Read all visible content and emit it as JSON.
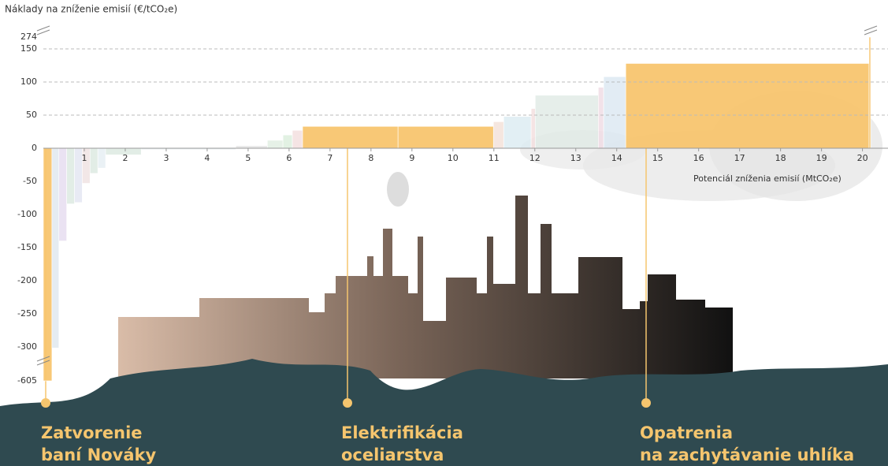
{
  "chart_data": {
    "type": "macc",
    "title": "Náklady na zníženie emisií (€/tCO₂e)",
    "x_label": "Potenciál zníženia emisií (MtCO₂e)",
    "xlim": [
      0,
      20.2
    ],
    "xticks": [
      1,
      2,
      3,
      4,
      5,
      6,
      7,
      8,
      9,
      10,
      11,
      12,
      13,
      14,
      15,
      16,
      17,
      18,
      19,
      20
    ],
    "ylim": [
      -605,
      274
    ],
    "yticks": [
      274,
      150,
      100,
      50,
      0,
      -50,
      -100,
      -150,
      -200,
      -250,
      -300,
      -605
    ],
    "axis_breaks": [
      -300,
      150
    ],
    "grid": true,
    "widths": [
      0.21,
      0.17,
      0.19,
      0.19,
      0.19,
      0.19,
      0.19,
      0.19,
      0.87,
      2.31,
      0.77,
      0.38,
      0.23,
      0.25,
      2.33,
      2.33,
      0.25,
      0.67,
      0.1,
      1.54,
      0.13,
      0.54,
      5.94,
      0.04
    ],
    "values": [
      -605,
      -310,
      -140,
      -84,
      -82,
      -53,
      -38,
      -30,
      -10,
      -2,
      4,
      12,
      20,
      27,
      33,
      33,
      40,
      48,
      60,
      80,
      92,
      108,
      128,
      274
    ],
    "colors": [
      "#f8c66f",
      "#dfe8ee",
      "#e6dcef",
      "#dbe9e1",
      "#e3e6f2",
      "#f0e2e2",
      "#dbe9e1",
      "#e6eef3",
      "#dbe9e1",
      "#e3ecf0",
      "#e6e6e6",
      "#e0eee2",
      "#dbeedd",
      "#f3dede",
      "#f8c66f",
      "#f8c66f",
      "#f3e0d8",
      "#dcecf2",
      "#f3dede",
      "#e1ebe6",
      "#f0dce4",
      "#dce8f2",
      "#f8c66f",
      "#f8c66f"
    ],
    "annotations": [
      [
        "Zatvorenie",
        "baní Nováky"
      ],
      [
        "Elektrifikácia",
        "oceliarstva"
      ],
      [
        "Opatrenia",
        "na zachytávanie uhlíka"
      ]
    ]
  }
}
